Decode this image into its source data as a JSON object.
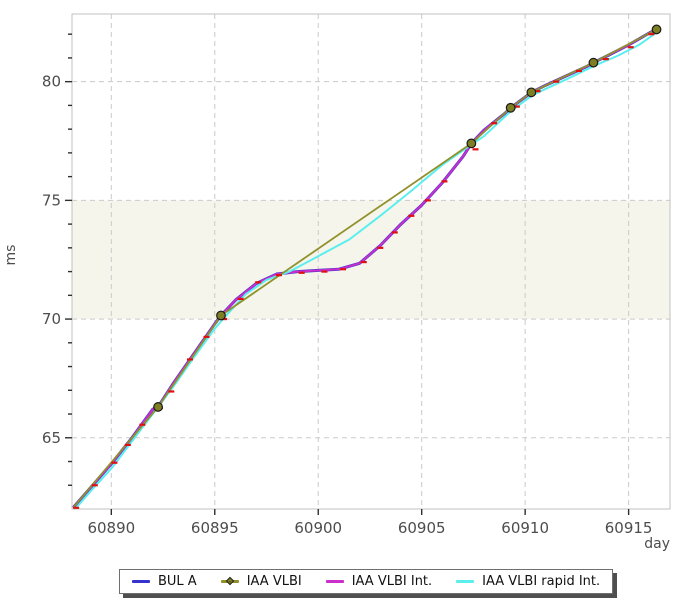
{
  "chart_data": {
    "type": "line",
    "title": "",
    "xlabel": "day",
    "ylabel": "ms",
    "xlim": [
      60888.1,
      60917.0
    ],
    "ylim": [
      62.0,
      82.85
    ],
    "x_ticks": [
      60890,
      60895,
      60900,
      60905,
      60910,
      60915
    ],
    "y_ticks": [
      65,
      70,
      75,
      80
    ],
    "y_minor_tick_start": 63,
    "y_minor_tick_end": 82,
    "grid": "dashed",
    "legend_position": "bottom-center",
    "band": {
      "y_from": 70,
      "y_to": 75,
      "color": "#f5f5ec"
    },
    "frame_color": "#c2c2c2",
    "grid_color": "#cacaca",
    "tick_color": "#2f2f2f",
    "series": [
      {
        "name": "BUL A",
        "id": "bul-a",
        "color": "#3533cc",
        "marker": "none",
        "points": [
          [
            60888.2,
            62.1
          ],
          [
            60889,
            62.9
          ],
          [
            60890,
            63.9
          ],
          [
            60891,
            65.0
          ],
          [
            60892,
            66.2
          ],
          [
            60892.26,
            66.3
          ],
          [
            60893,
            67.3
          ],
          [
            60894,
            68.55
          ],
          [
            60895,
            69.8
          ],
          [
            60895.3,
            70.15
          ],
          [
            60896,
            70.8
          ],
          [
            60897,
            71.5
          ],
          [
            60898,
            71.9
          ],
          [
            60899,
            72.0
          ],
          [
            60900,
            72.05
          ],
          [
            60901,
            72.1
          ],
          [
            60902,
            72.35
          ],
          [
            60903,
            73.1
          ],
          [
            60904,
            74.0
          ],
          [
            60905,
            74.8
          ],
          [
            60906,
            75.75
          ],
          [
            60907,
            76.85
          ],
          [
            60907.4,
            77.4
          ],
          [
            60908,
            77.95
          ],
          [
            60909,
            78.65
          ],
          [
            60909.3,
            78.9
          ],
          [
            60910,
            79.35
          ],
          [
            60910.3,
            79.55
          ],
          [
            60911,
            79.85
          ],
          [
            60912,
            80.25
          ],
          [
            60913,
            80.65
          ],
          [
            60913.3,
            80.8
          ],
          [
            60914,
            81.1
          ],
          [
            60915,
            81.55
          ],
          [
            60916,
            82.05
          ],
          [
            60916.35,
            82.2
          ]
        ]
      },
      {
        "name": "IAA VLBI",
        "id": "iaa-vlbi",
        "color": "#91912b",
        "marker": "circle",
        "marker_fill": "#7e7e23",
        "marker_edge": "#1a1a1a",
        "points": [
          [
            60888.2,
            62.1
          ],
          [
            60892.26,
            66.3
          ],
          [
            60895.3,
            70.15
          ],
          [
            60907.4,
            77.4
          ],
          [
            60909.3,
            78.9
          ],
          [
            60910.3,
            79.55
          ],
          [
            60913.3,
            80.8
          ],
          [
            60916.35,
            82.2
          ]
        ],
        "marker_points": [
          [
            60892.26,
            66.3
          ],
          [
            60895.3,
            70.15
          ],
          [
            60907.4,
            77.4
          ],
          [
            60909.3,
            78.9
          ],
          [
            60910.3,
            79.55
          ],
          [
            60913.3,
            80.8
          ],
          [
            60916.35,
            82.2
          ]
        ]
      },
      {
        "name": "IAA VLBI Int.",
        "id": "iaa-vlbi-int",
        "color": "#cc2ecc",
        "marker": "none",
        "points": [
          [
            60888.2,
            62.1
          ],
          [
            60889,
            62.9
          ],
          [
            60890,
            63.9
          ],
          [
            60891,
            65.0
          ],
          [
            60892,
            66.2
          ],
          [
            60892.26,
            66.3
          ],
          [
            60893,
            67.3
          ],
          [
            60894,
            68.55
          ],
          [
            60895,
            69.8
          ],
          [
            60895.3,
            70.15
          ],
          [
            60896,
            70.8
          ],
          [
            60897,
            71.5
          ],
          [
            60898,
            71.9
          ],
          [
            60899,
            72.0
          ],
          [
            60900,
            72.05
          ],
          [
            60901,
            72.1
          ],
          [
            60902,
            72.35
          ],
          [
            60903,
            73.1
          ],
          [
            60904,
            74.0
          ],
          [
            60905,
            74.8
          ],
          [
            60906,
            75.75
          ],
          [
            60907,
            76.85
          ],
          [
            60907.4,
            77.4
          ],
          [
            60908,
            77.95
          ],
          [
            60909,
            78.65
          ],
          [
            60909.3,
            78.9
          ],
          [
            60910,
            79.35
          ],
          [
            60910.3,
            79.55
          ],
          [
            60911,
            79.85
          ],
          [
            60912,
            80.25
          ],
          [
            60913,
            80.65
          ],
          [
            60913.3,
            80.8
          ],
          [
            60914,
            81.1
          ],
          [
            60915,
            81.55
          ],
          [
            60916,
            82.05
          ],
          [
            60916.35,
            82.2
          ]
        ]
      },
      {
        "name": "IAA VLBI rapid Int.",
        "id": "iaa-vlbi-rapid-int",
        "color": "#5beeee",
        "marker": "none",
        "points": [
          [
            60888.2,
            61.95
          ],
          [
            60889,
            62.75
          ],
          [
            60890,
            63.7
          ],
          [
            60891,
            64.85
          ],
          [
            60892,
            66.0
          ],
          [
            60893,
            67.15
          ],
          [
            60894,
            68.4
          ],
          [
            60895,
            69.6
          ],
          [
            60895.5,
            70.1
          ],
          [
            60896.5,
            71.05
          ],
          [
            60897.5,
            71.65
          ],
          [
            60898.6,
            72.0
          ],
          [
            60900,
            72.65
          ],
          [
            60901.5,
            73.35
          ],
          [
            60903,
            74.35
          ],
          [
            60904.5,
            75.4
          ],
          [
            60906,
            76.5
          ],
          [
            60907.4,
            77.35
          ],
          [
            60908,
            77.7
          ],
          [
            60909.3,
            78.75
          ],
          [
            60910.3,
            79.4
          ],
          [
            60911,
            79.7
          ],
          [
            60912,
            80.1
          ],
          [
            60913.3,
            80.65
          ],
          [
            60914.5,
            81.1
          ],
          [
            60915.5,
            81.55
          ],
          [
            60916.4,
            82.1
          ]
        ]
      }
    ],
    "error_marks": {
      "color": "#e01010",
      "points": [
        [
          60888.3,
          62.05
        ],
        [
          60889.2,
          63.0
        ],
        [
          60890.15,
          63.95
        ],
        [
          60890.8,
          64.7
        ],
        [
          60891.5,
          65.55
        ],
        [
          60892.35,
          66.25
        ],
        [
          60892.9,
          66.95
        ],
        [
          60893.8,
          68.3
        ],
        [
          60894.6,
          69.25
        ],
        [
          60895.45,
          70.0
        ],
        [
          60896.25,
          70.85
        ],
        [
          60897.1,
          71.55
        ],
        [
          60898.1,
          71.85
        ],
        [
          60899.2,
          71.95
        ],
        [
          60900.3,
          72.0
        ],
        [
          60901.2,
          72.1
        ],
        [
          60902.2,
          72.4
        ],
        [
          60903.0,
          73.0
        ],
        [
          60903.7,
          73.65
        ],
        [
          60904.5,
          74.35
        ],
        [
          60905.3,
          75.0
        ],
        [
          60906.1,
          75.8
        ],
        [
          60907.6,
          77.15
        ],
        [
          60908.5,
          78.25
        ],
        [
          60909.6,
          78.95
        ],
        [
          60910.6,
          79.6
        ],
        [
          60911.5,
          80.0
        ],
        [
          60912.6,
          80.45
        ],
        [
          60913.9,
          80.95
        ],
        [
          60915.1,
          81.45
        ],
        [
          60916.1,
          82.0
        ]
      ]
    }
  }
}
